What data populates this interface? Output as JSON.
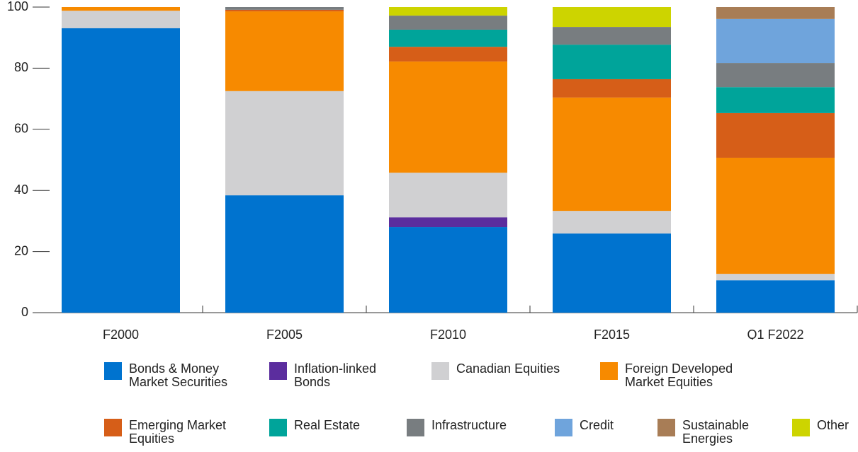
{
  "chart_data": {
    "type": "stacked_bar",
    "categories": [
      "F2000",
      "F2005",
      "F2010",
      "F2015",
      "Q1 F2022"
    ],
    "ylim": [
      0,
      100
    ],
    "yticks": [
      0,
      20,
      40,
      60,
      80,
      100
    ],
    "series": [
      {
        "name": "Bonds & Money Market Securities",
        "color": "#0073cf",
        "values": [
          93.1,
          38.4,
          28.0,
          25.9,
          10.6
        ]
      },
      {
        "name": "Inflation-linked Bonds",
        "color": "#5b2d9e",
        "values": [
          0,
          0,
          3.2,
          0,
          0
        ]
      },
      {
        "name": "Canadian Equities",
        "color": "#d0d0d2",
        "values": [
          5.7,
          34.1,
          14.6,
          7.4,
          2.1
        ]
      },
      {
        "name": "Foreign Developed Market Equities",
        "color": "#f78a00",
        "values": [
          1.2,
          26.1,
          36.4,
          37.1,
          38.0
        ]
      },
      {
        "name": "Emerging Market Equities",
        "color": "#d65e18",
        "values": [
          0,
          0.5,
          4.8,
          6.0,
          14.6
        ]
      },
      {
        "name": "Real Estate",
        "color": "#00a49a",
        "values": [
          0,
          0,
          5.6,
          11.3,
          8.5
        ]
      },
      {
        "name": "Infrastructure",
        "color": "#787d80",
        "values": [
          0,
          0.9,
          4.6,
          5.8,
          7.9
        ]
      },
      {
        "name": "Credit",
        "color": "#6fa4dc",
        "values": [
          0,
          0,
          0,
          0,
          14.4
        ]
      },
      {
        "name": "Sustainable Energies",
        "color": "#a87d56",
        "values": [
          0,
          0,
          0,
          0,
          3.9
        ]
      },
      {
        "name": "Other",
        "color": "#cdd400",
        "values": [
          0,
          0,
          2.8,
          6.5,
          0
        ]
      }
    ]
  }
}
